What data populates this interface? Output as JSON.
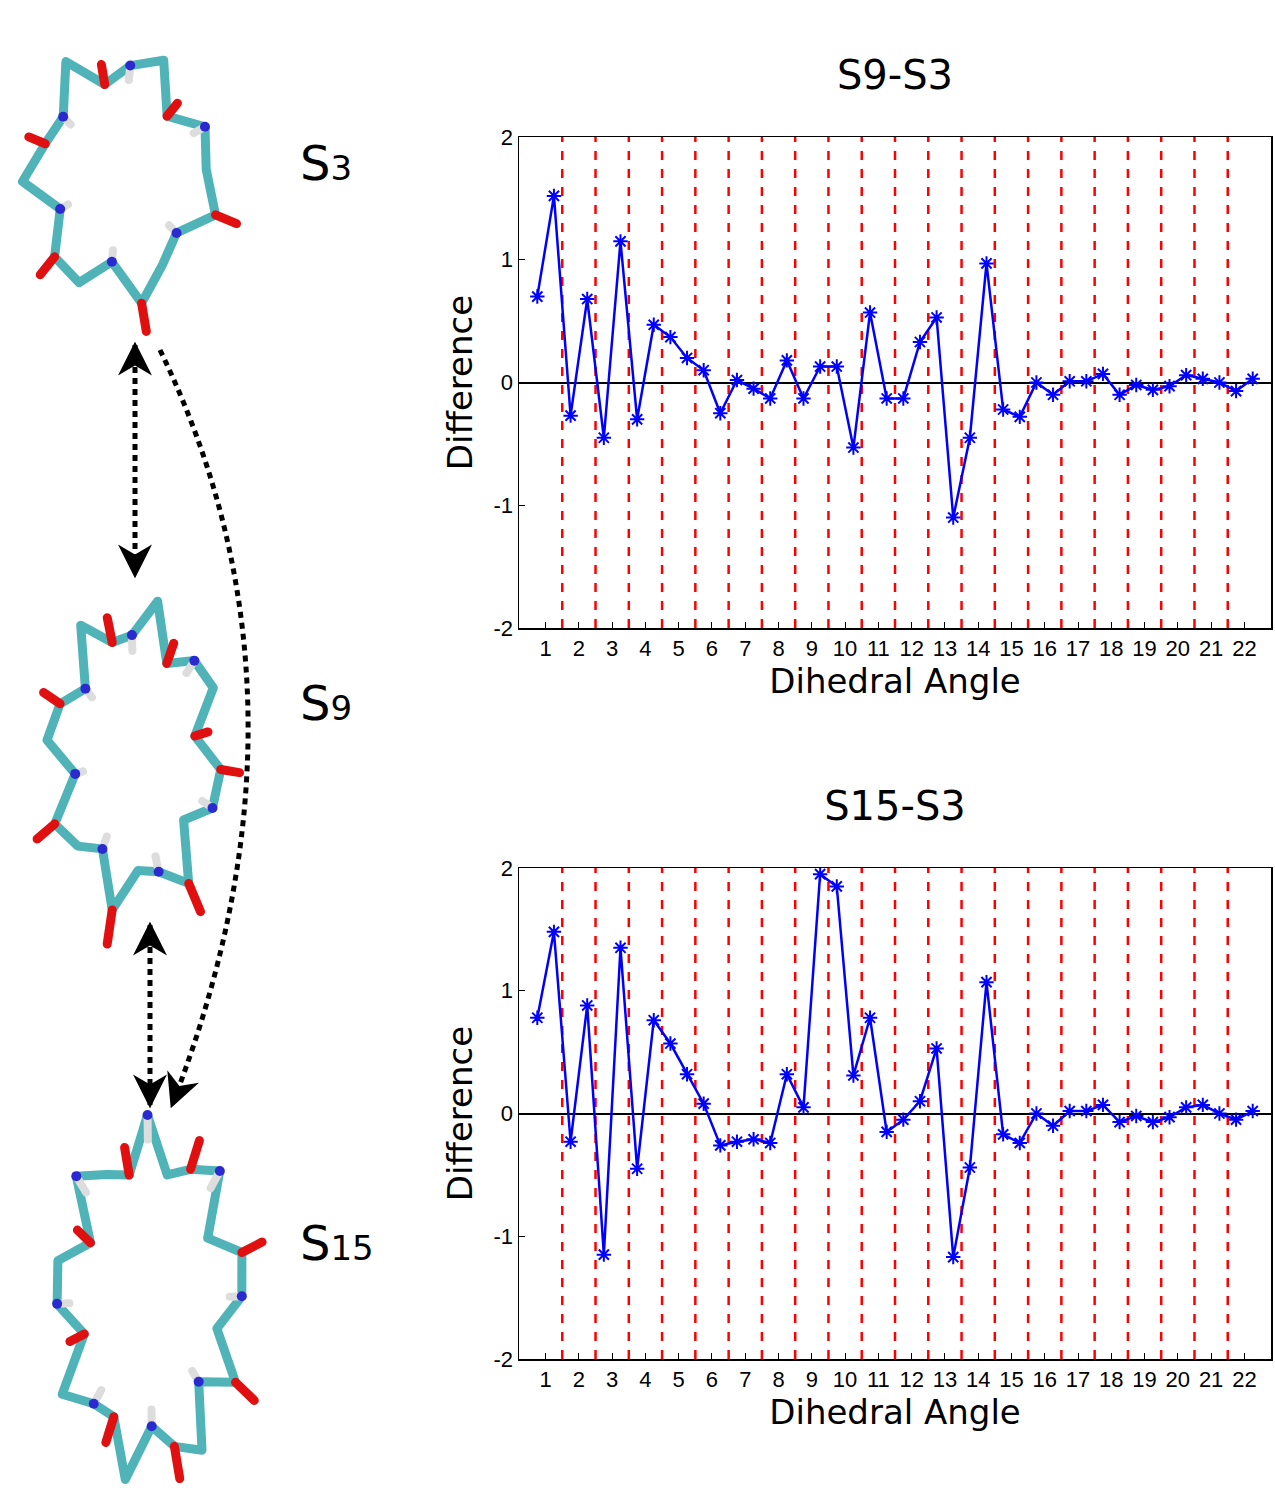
{
  "structures": [
    "S3",
    "S9",
    "S15"
  ],
  "chart_data": [
    {
      "type": "line",
      "title": "S9-S3",
      "x_label": "Dihedral Angle",
      "y_label": "Difference",
      "x": [
        0.75,
        1.25,
        1.75,
        2.25,
        2.75,
        3.25,
        3.75,
        4.25,
        4.75,
        5.25,
        5.75,
        6.25,
        6.75,
        7.25,
        7.75,
        8.25,
        8.75,
        9.25,
        9.75,
        10.25,
        10.75,
        11.25,
        11.75,
        12.25,
        12.75,
        13.25,
        13.75,
        14.25,
        14.75,
        15.25,
        15.75,
        16.25,
        16.75,
        17.25,
        17.75,
        18.25,
        18.75,
        19.25,
        19.75,
        20.25,
        20.75,
        21.25,
        21.75,
        22.25
      ],
      "values": [
        0.7,
        1.52,
        -0.27,
        0.68,
        -0.45,
        1.15,
        -0.3,
        0.47,
        0.37,
        0.2,
        0.1,
        -0.25,
        0.02,
        -0.05,
        -0.13,
        0.18,
        -0.13,
        0.13,
        0.13,
        -0.53,
        0.57,
        -0.13,
        -0.13,
        0.33,
        0.53,
        -1.1,
        -0.45,
        0.97,
        -0.22,
        -0.28,
        0.0,
        -0.1,
        0.01,
        0.01,
        0.07,
        -0.1,
        -0.02,
        -0.06,
        -0.03,
        0.06,
        0.03,
        0.0,
        -0.07,
        0.03
      ],
      "color": "#0000ff",
      "marker": "asterisk",
      "line_style": "solid",
      "xlim": [
        0.2,
        22.8
      ],
      "xticks": [
        1,
        2,
        3,
        4,
        5,
        6,
        7,
        8,
        9,
        10,
        11,
        12,
        13,
        14,
        15,
        16,
        17,
        18,
        19,
        20,
        21,
        22
      ],
      "ylim": [
        -2,
        2
      ],
      "yticks": [
        -2,
        -1,
        0,
        1,
        2
      ]
    },
    {
      "type": "line",
      "title": "S15-S3",
      "x_label": "Dihedral Angle",
      "y_label": "Difference",
      "x": [
        0.75,
        1.25,
        1.75,
        2.25,
        2.75,
        3.25,
        3.75,
        4.25,
        4.75,
        5.25,
        5.75,
        6.25,
        6.75,
        7.25,
        7.75,
        8.25,
        8.75,
        9.25,
        9.75,
        10.25,
        10.75,
        11.25,
        11.75,
        12.25,
        12.75,
        13.25,
        13.75,
        14.25,
        14.75,
        15.25,
        15.75,
        16.25,
        16.75,
        17.25,
        17.75,
        18.25,
        18.75,
        19.25,
        19.75,
        20.25,
        20.75,
        21.25,
        21.75,
        22.25
      ],
      "values": [
        0.78,
        1.48,
        -0.23,
        0.88,
        -1.15,
        1.35,
        -0.45,
        0.76,
        0.57,
        0.32,
        0.08,
        -0.26,
        -0.23,
        -0.21,
        -0.24,
        0.32,
        0.05,
        1.95,
        1.85,
        0.31,
        0.78,
        -0.15,
        -0.05,
        0.1,
        0.53,
        -1.17,
        -0.44,
        1.07,
        -0.17,
        -0.24,
        0.0,
        -0.1,
        0.02,
        0.02,
        0.07,
        -0.07,
        -0.02,
        -0.07,
        -0.03,
        0.05,
        0.07,
        0.0,
        -0.05,
        0.02
      ],
      "color": "#0000ff",
      "marker": "asterisk",
      "line_style": "solid",
      "xlim": [
        0.2,
        22.8
      ],
      "xticks": [
        1,
        2,
        3,
        4,
        5,
        6,
        7,
        8,
        9,
        10,
        11,
        12,
        13,
        14,
        15,
        16,
        17,
        18,
        19,
        20,
        21,
        22
      ],
      "ylim": [
        -2,
        2
      ],
      "yticks": [
        -2,
        -1,
        0,
        1,
        2
      ]
    }
  ]
}
